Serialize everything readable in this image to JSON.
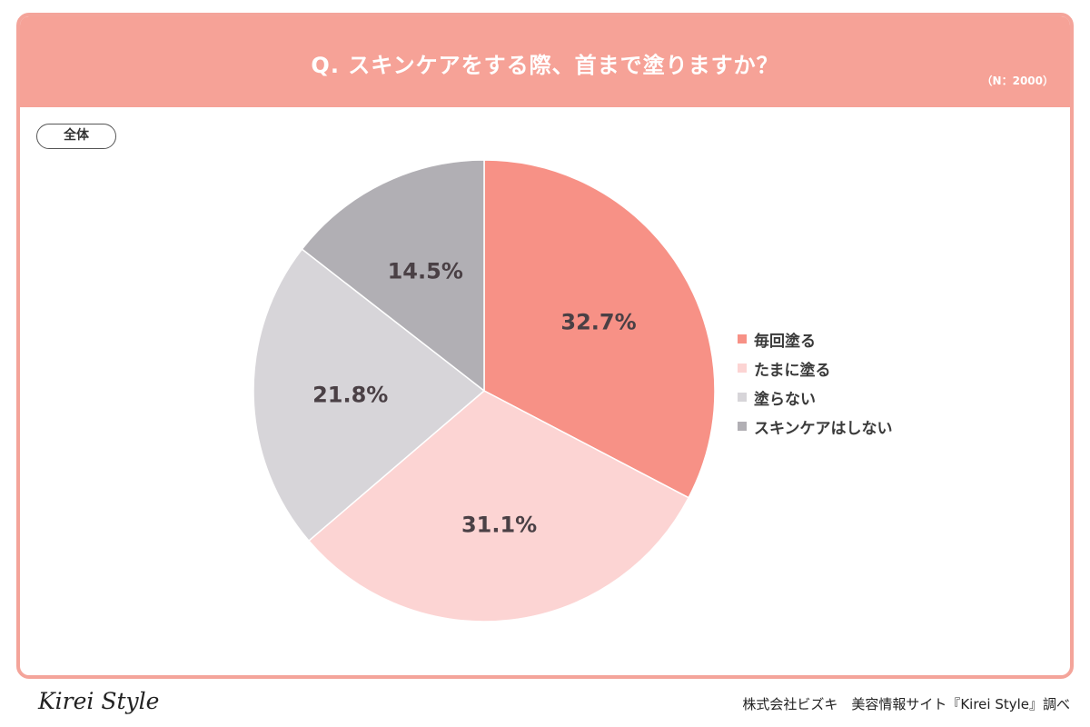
{
  "header": {
    "question": "Q. スキンケアをする際、首まで塗りますか？",
    "sample_size": "（N：2000）"
  },
  "segment_label": "全体",
  "chart_data": {
    "type": "pie",
    "title": "Q. スキンケアをする際、首まで塗りますか？",
    "categories": [
      "毎回塗る",
      "たまに塗る",
      "塗らない",
      "スキンケアはしない"
    ],
    "values": [
      32.7,
      31.1,
      21.8,
      14.5
    ],
    "labels": [
      "32.7%",
      "31.1%",
      "21.8%",
      "14.5%"
    ],
    "colors": [
      "#f79186",
      "#fcd4d3",
      "#d7d5d9",
      "#b1afb4"
    ],
    "legend_position": "right",
    "start": "top, clockwise"
  },
  "footer": {
    "brand": "Kirei Style",
    "source": "株式会社ビズキ　美容情報サイト『Kirei Style』調べ"
  }
}
